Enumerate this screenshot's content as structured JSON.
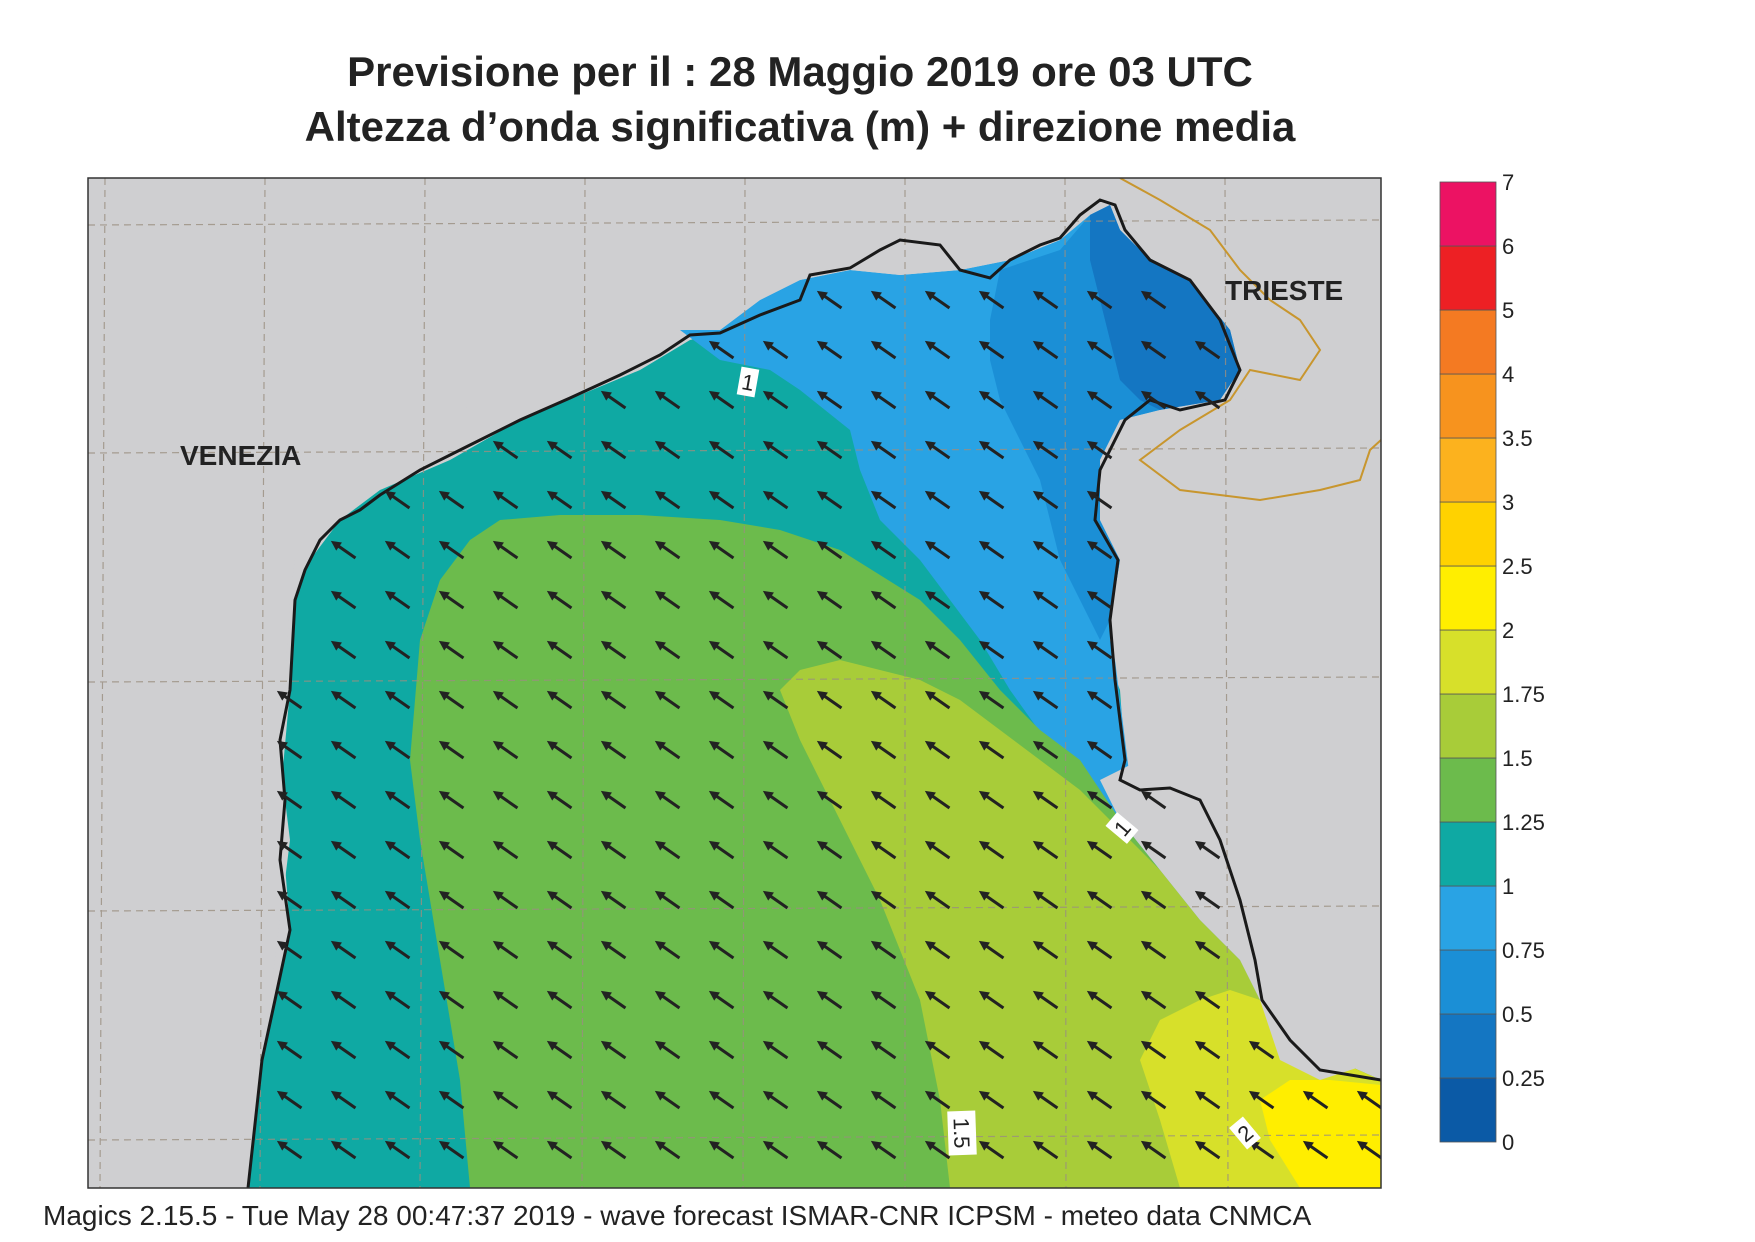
{
  "header": {
    "title_line1": "Previsione per il  :  28   Maggio  2019   ore 03 UTC",
    "title_line2": "Altezza d’onda significativa (m) + direzione media"
  },
  "map": {
    "places": [
      {
        "name": "VENEZIA"
      },
      {
        "name": "TRIESTE"
      }
    ],
    "contour_labels": [
      "1",
      "1",
      "1.5",
      "2"
    ],
    "arrow_direction": "north-west",
    "land_color": "#cfcfd1",
    "coast_color": "#1a1a1a",
    "border_color": "#c8962e",
    "arrow_color": "#222222"
  },
  "legend": {
    "bands": [
      {
        "label": "0",
        "color": "#0b5aa6"
      },
      {
        "label": "0.25",
        "color": "#1476c2"
      },
      {
        "label": "0.5",
        "color": "#1b8fd6"
      },
      {
        "label": "0.75",
        "color": "#29a3e4"
      },
      {
        "label": "1",
        "color": "#0fa9a3"
      },
      {
        "label": "1.25",
        "color": "#6cbb4c"
      },
      {
        "label": "1.5",
        "color": "#a8cc39"
      },
      {
        "label": "1.75",
        "color": "#d7e02a"
      },
      {
        "label": "2",
        "color": "#ffee00"
      },
      {
        "label": "2.5",
        "color": "#ffd200"
      },
      {
        "label": "3",
        "color": "#fcb21e"
      },
      {
        "label": "3.5",
        "color": "#f7931e"
      },
      {
        "label": "4",
        "color": "#f47a22"
      },
      {
        "label": "5",
        "color": "#ed2024"
      },
      {
        "label": "6",
        "color": "#ec1263"
      }
    ],
    "top_label": "7"
  },
  "footer": {
    "text": "Magics 2.15.5 - Tue May 28 00:47:37 2019 - wave forecast  ISMAR-CNR  ICPSM - meteo data   CNMCA"
  }
}
